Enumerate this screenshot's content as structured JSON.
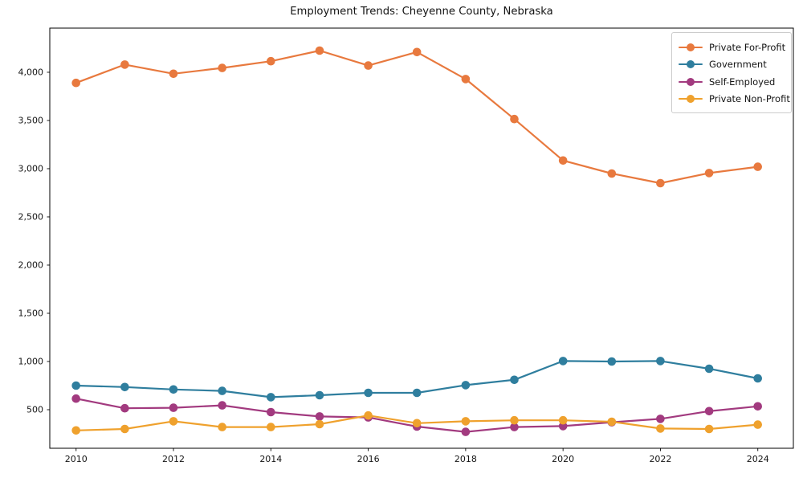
{
  "title": "Employment Trends: Cheyenne County, Nebraska",
  "chart_data": {
    "type": "line",
    "title": "Employment Trends: Cheyenne County, Nebraska",
    "xlabel": "",
    "ylabel": "",
    "x": [
      2010,
      2011,
      2012,
      2013,
      2014,
      2015,
      2016,
      2017,
      2018,
      2019,
      2020,
      2021,
      2022,
      2023,
      2024
    ],
    "series": [
      {
        "name": "Private For-Profit",
        "color": "#e8793e",
        "values": [
          3890,
          4080,
          3985,
          4045,
          4115,
          4225,
          4070,
          4210,
          3930,
          3515,
          3085,
          2950,
          2850,
          2955,
          3020
        ]
      },
      {
        "name": "Government",
        "color": "#2f7e9e",
        "values": [
          750,
          735,
          710,
          695,
          630,
          650,
          675,
          675,
          755,
          810,
          1005,
          1000,
          1005,
          925,
          825
        ]
      },
      {
        "name": "Self-Employed",
        "color": "#a23a7f",
        "values": [
          615,
          515,
          520,
          545,
          475,
          430,
          420,
          325,
          270,
          320,
          330,
          370,
          405,
          485,
          535
        ]
      },
      {
        "name": "Private Non-Profit",
        "color": "#efa12d",
        "values": [
          285,
          300,
          380,
          320,
          320,
          350,
          440,
          360,
          380,
          390,
          390,
          375,
          305,
          300,
          345
        ]
      }
    ],
    "xticks": [
      2010,
      2012,
      2014,
      2016,
      2018,
      2020,
      2022,
      2024
    ],
    "xtick_labels": [
      "2010",
      "2012",
      "2014",
      "2016",
      "2018",
      "2020",
      "2022",
      "2024"
    ],
    "yticks": [
      500,
      1000,
      1500,
      2000,
      2500,
      3000,
      3500,
      4000
    ],
    "ytick_labels": [
      "500",
      "1,000",
      "1,500",
      "2,000",
      "2,500",
      "3,000",
      "3,500",
      "4,000"
    ],
    "xlim": [
      2009.46,
      2024.73
    ],
    "ylim": [
      100,
      4458
    ],
    "grid": false,
    "legend_position": "upper right"
  }
}
